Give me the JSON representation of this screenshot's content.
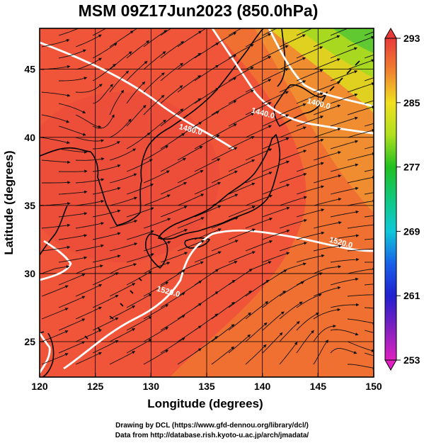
{
  "title": "MSM 09Z17Jun2023 (850.0hPa)",
  "map": {
    "xlabel": "Longitude (degrees)",
    "ylabel": "Latitude  (degrees)",
    "lon_range": [
      120,
      150
    ],
    "lat_range": [
      22.4,
      48
    ],
    "lon_ticks": [
      "120",
      "125",
      "130",
      "135",
      "140",
      "145",
      "150"
    ],
    "lat_ticks": [
      "25",
      "30",
      "35",
      "40",
      "45"
    ],
    "lon_tick_values": [
      120,
      125,
      130,
      135,
      140,
      145,
      150
    ],
    "lat_tick_values": [
      25,
      30,
      35,
      40,
      45
    ],
    "colors": {
      "field_dominant": "#f0553a",
      "field_warm": "#e8452e",
      "field_orange": "#f07a30",
      "field_cool": "#c8e020",
      "contour": "#ffffff",
      "coastline": "#000000",
      "streamline": "#111111"
    },
    "contour_labels": [
      {
        "text": "1480.0",
        "lon": 133.5,
        "lat": 40.4
      },
      {
        "text": "1440.0",
        "lon": 140.0,
        "lat": 41.6
      },
      {
        "text": "1400.0",
        "lon": 145.0,
        "lat": 42.3
      },
      {
        "text": "1520.0",
        "lon": 147.0,
        "lat": 32.1
      },
      {
        "text": "1520.0",
        "lon": 131.5,
        "lat": 28.5
      }
    ]
  },
  "colorbar": {
    "ticks": [
      "293",
      "285",
      "277",
      "269",
      "261",
      "253"
    ],
    "tick_values": [
      293,
      285,
      277,
      269,
      261,
      253
    ],
    "range": [
      253,
      293
    ],
    "stops": [
      {
        "v": 253,
        "color": "#e020c0"
      },
      {
        "v": 257,
        "color": "#8020c0"
      },
      {
        "v": 261,
        "color": "#2020d0"
      },
      {
        "v": 265,
        "color": "#1860e8"
      },
      {
        "v": 269,
        "color": "#10c8d8"
      },
      {
        "v": 273,
        "color": "#10c880"
      },
      {
        "v": 277,
        "color": "#20c020"
      },
      {
        "v": 281,
        "color": "#b0e020"
      },
      {
        "v": 285,
        "color": "#f0e020"
      },
      {
        "v": 289,
        "color": "#f08030"
      },
      {
        "v": 293,
        "color": "#e83a3a"
      }
    ]
  },
  "credits": [
    "Drawing by DCL (https://www.gfd-dennou.org/library/dcl/)",
    "Data from http://database.rish.kyoto-u.ac.jp/arch/jmadata/"
  ]
}
